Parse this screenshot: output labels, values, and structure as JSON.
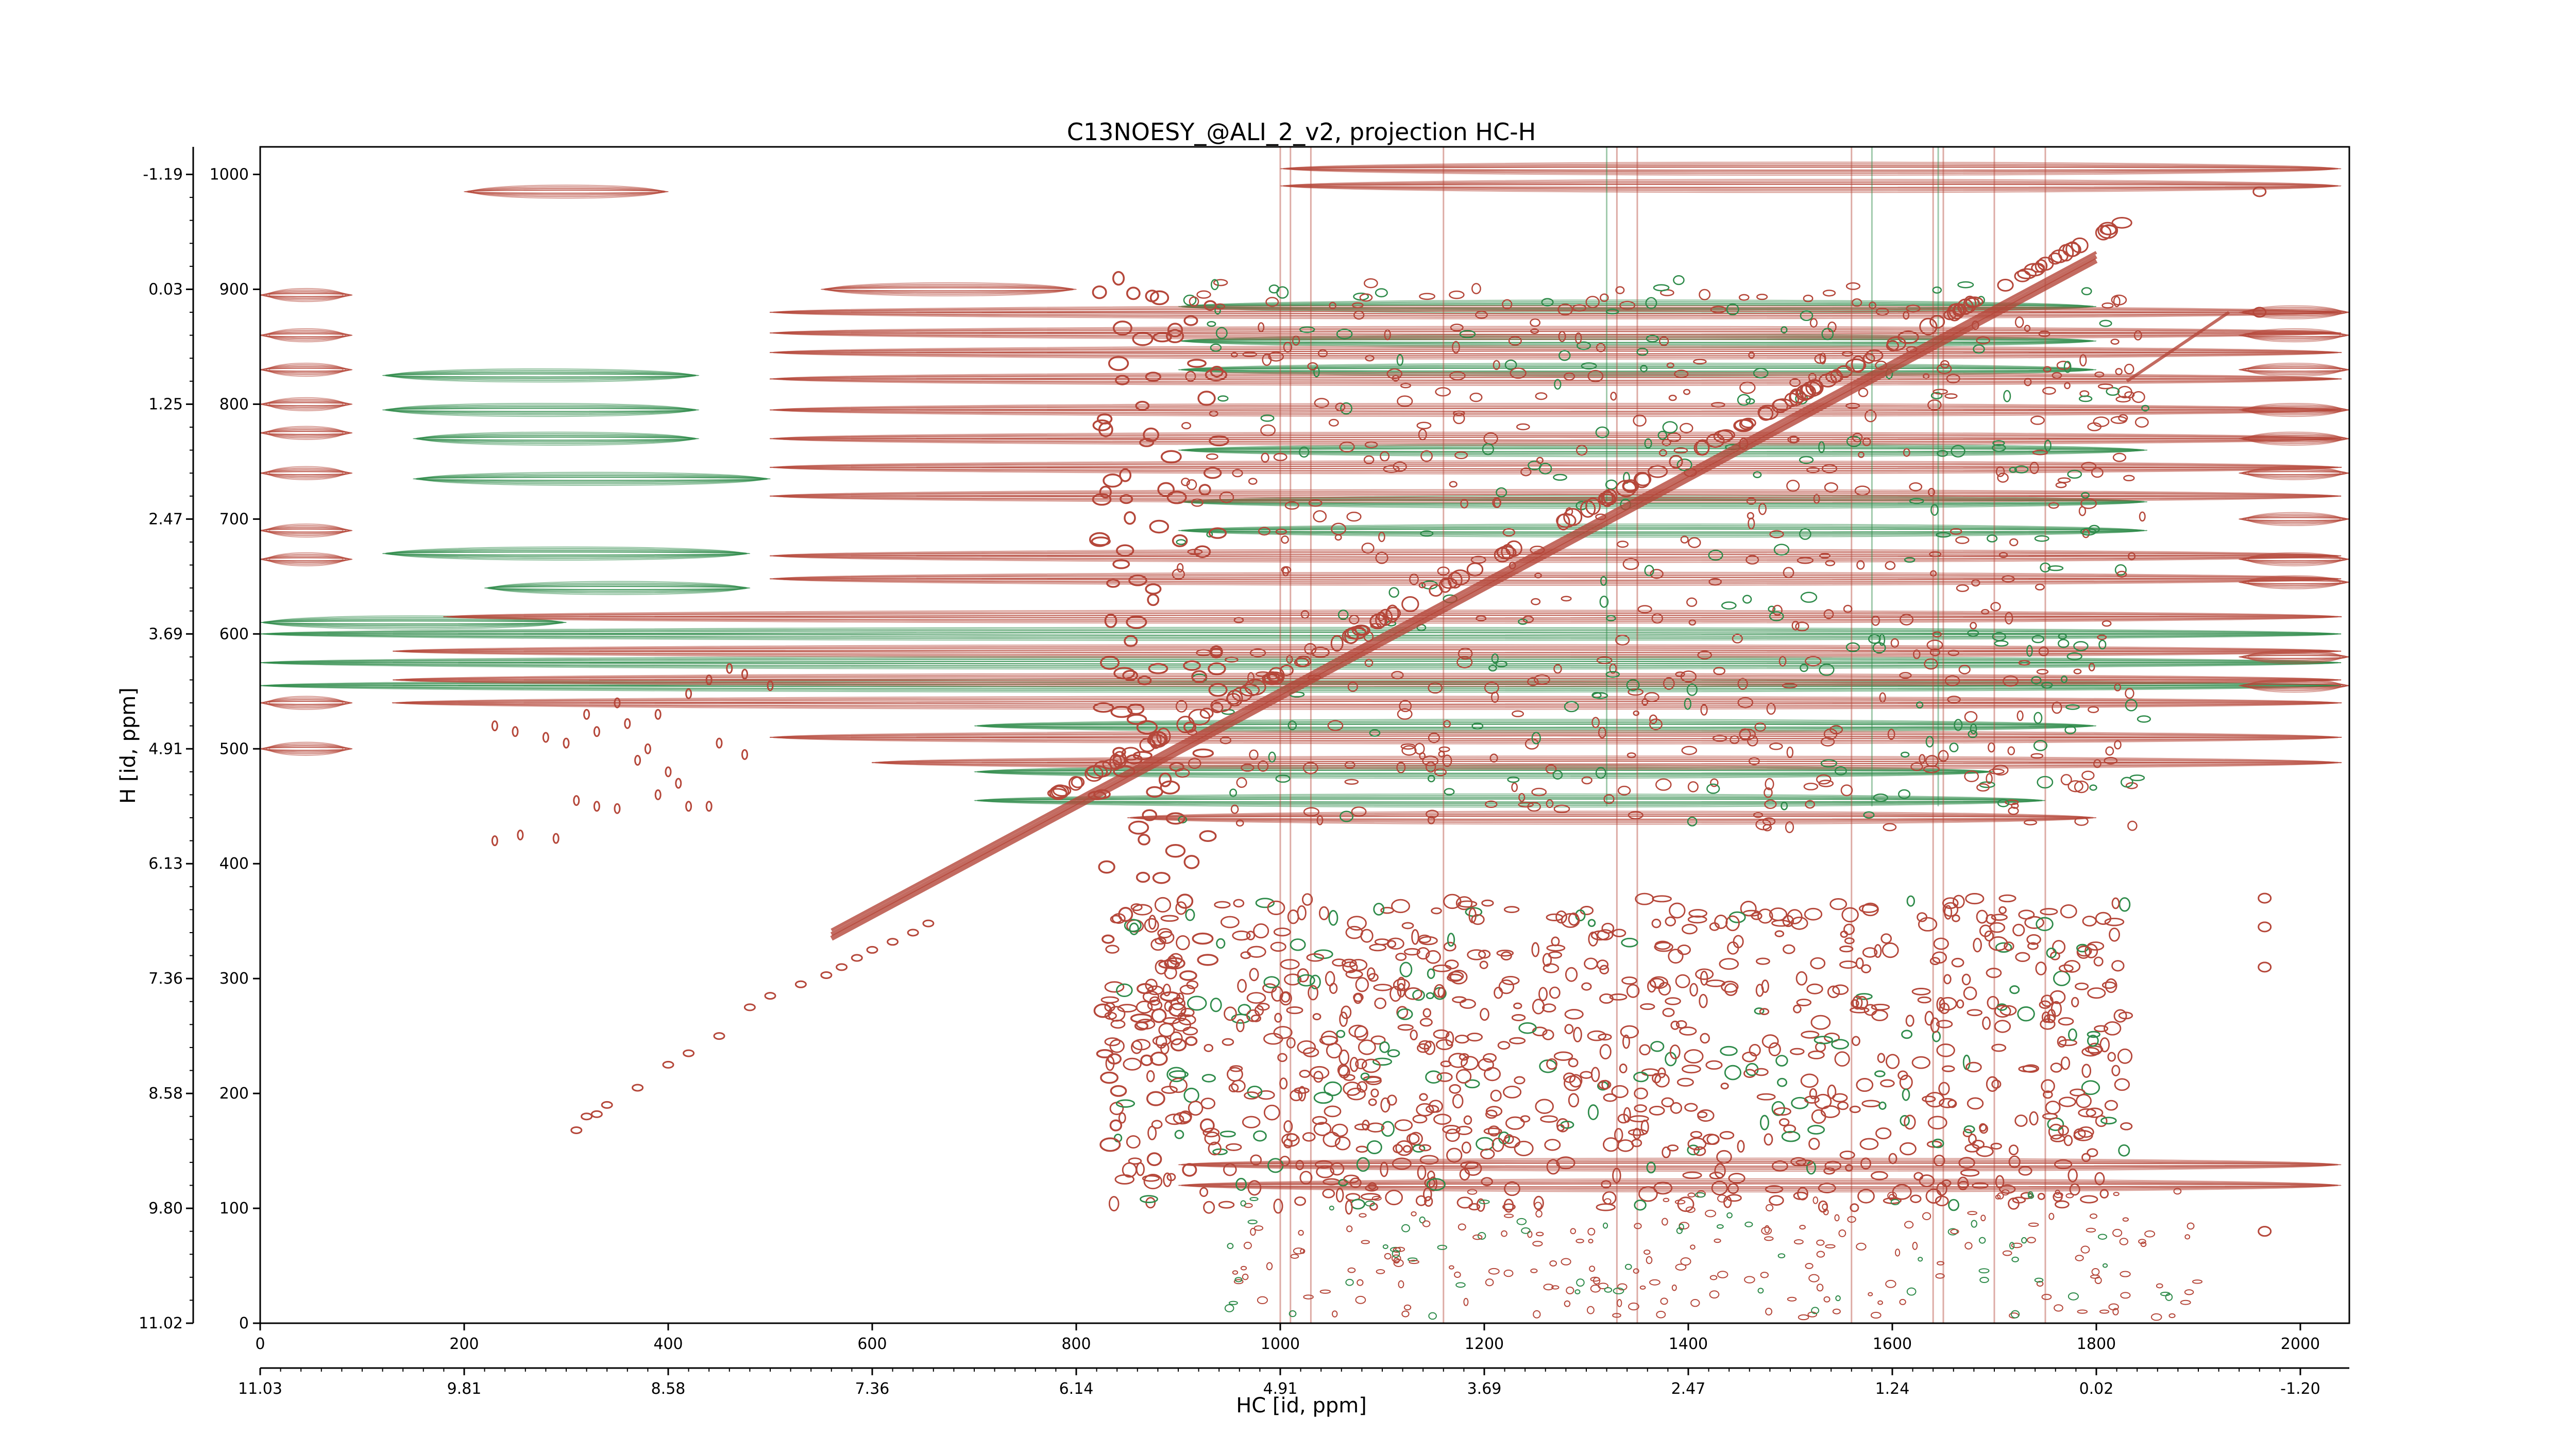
{
  "chart_data": {
    "type": "heatmap",
    "subtype": "2D NMR contour plot (positive/negative levels)",
    "title": "C13NOESY_@ALI_2_v2, projection HC-H",
    "xlabel": "HC [id, ppm]",
    "ylabel": "H [id, ppm]",
    "grid": false,
    "legend": "none",
    "xlim": [
      0,
      2048
    ],
    "ylim": [
      0,
      1024
    ],
    "x_ticks_id": [
      0,
      200,
      400,
      600,
      800,
      1000,
      1200,
      1400,
      1600,
      1800,
      2000
    ],
    "x_ticks_ppm": [
      "11.03",
      "9.81",
      "8.58",
      "7.36",
      "6.14",
      "4.91",
      "3.69",
      "2.47",
      "1.24",
      "0.02",
      "-1.20"
    ],
    "y_ticks_id": [
      0,
      100,
      200,
      300,
      400,
      500,
      600,
      700,
      800,
      900,
      1000
    ],
    "y_ticks_ppm": [
      "11.02",
      "9.80",
      "8.58",
      "7.36",
      "6.13",
      "4.91",
      "3.69",
      "2.47",
      "1.25",
      "0.03",
      "-1.19"
    ],
    "colors": {
      "positive_contours": "#b5473a",
      "negative_contours": "#2e8b4a"
    },
    "diagonal": {
      "from": [
        560,
        335
      ],
      "to": [
        1800,
        925
      ]
    },
    "positive_bands": [
      {
        "y": 985,
        "x0": 200,
        "x1": 400
      },
      {
        "y": 900,
        "x0": 550,
        "x1": 800
      },
      {
        "y": 880,
        "x0": 500,
        "x1": 2040
      },
      {
        "y": 862,
        "x0": 500,
        "x1": 2040
      },
      {
        "y": 845,
        "x0": 500,
        "x1": 2040
      },
      {
        "y": 822,
        "x0": 500,
        "x1": 2040
      },
      {
        "y": 795,
        "x0": 500,
        "x1": 2040
      },
      {
        "y": 770,
        "x0": 500,
        "x1": 2040
      },
      {
        "y": 745,
        "x0": 500,
        "x1": 2040
      },
      {
        "y": 720,
        "x0": 500,
        "x1": 2040
      },
      {
        "y": 668,
        "x0": 500,
        "x1": 2040
      },
      {
        "y": 648,
        "x0": 500,
        "x1": 2040
      },
      {
        "y": 615,
        "x0": 180,
        "x1": 2040
      },
      {
        "y": 585,
        "x0": 130,
        "x1": 2040
      },
      {
        "y": 560,
        "x0": 130,
        "x1": 2040
      },
      {
        "y": 540,
        "x0": 130,
        "x1": 2040
      },
      {
        "y": 510,
        "x0": 500,
        "x1": 2040
      },
      {
        "y": 488,
        "x0": 600,
        "x1": 2040
      },
      {
        "y": 440,
        "x0": 850,
        "x1": 1800
      },
      {
        "y": 138,
        "x0": 900,
        "x1": 2040
      },
      {
        "y": 120,
        "x0": 900,
        "x1": 2040
      },
      {
        "y": 1005,
        "x0": 1000,
        "x1": 2040
      },
      {
        "y": 990,
        "x0": 1000,
        "x1": 2040
      }
    ],
    "negative_bands": [
      {
        "y": 825,
        "x0": 120,
        "x1": 430
      },
      {
        "y": 795,
        "x0": 120,
        "x1": 430
      },
      {
        "y": 770,
        "x0": 150,
        "x1": 430
      },
      {
        "y": 735,
        "x0": 150,
        "x1": 500
      },
      {
        "y": 670,
        "x0": 120,
        "x1": 480
      },
      {
        "y": 640,
        "x0": 220,
        "x1": 480
      },
      {
        "y": 610,
        "x0": 0,
        "x1": 300
      },
      {
        "y": 600,
        "x0": 0,
        "x1": 2040
      },
      {
        "y": 575,
        "x0": 0,
        "x1": 2040
      },
      {
        "y": 555,
        "x0": 0,
        "x1": 2040
      },
      {
        "y": 520,
        "x0": 700,
        "x1": 1800
      },
      {
        "y": 480,
        "x0": 700,
        "x1": 1700
      },
      {
        "y": 455,
        "x0": 700,
        "x1": 1750
      },
      {
        "y": 885,
        "x0": 900,
        "x1": 1800
      },
      {
        "y": 855,
        "x0": 900,
        "x1": 1800
      },
      {
        "y": 830,
        "x0": 900,
        "x1": 1800
      },
      {
        "y": 760,
        "x0": 900,
        "x1": 1850
      },
      {
        "y": 715,
        "x0": 900,
        "x1": 1850
      },
      {
        "y": 690,
        "x0": 900,
        "x1": 1850
      }
    ],
    "left_strip_bands": [
      {
        "y": 895
      },
      {
        "y": 860
      },
      {
        "y": 830
      },
      {
        "y": 800
      },
      {
        "y": 775
      },
      {
        "y": 740
      },
      {
        "y": 690
      },
      {
        "y": 665
      },
      {
        "y": 540
      },
      {
        "y": 500
      }
    ],
    "right_strip_bands": [
      {
        "y": 880
      },
      {
        "y": 860
      },
      {
        "y": 830
      },
      {
        "y": 795
      },
      {
        "y": 770
      },
      {
        "y": 740
      },
      {
        "y": 700
      },
      {
        "y": 665
      },
      {
        "y": 645
      },
      {
        "y": 580
      },
      {
        "y": 555
      }
    ],
    "aromatic_peaks": [
      {
        "x": 655,
        "y": 348
      },
      {
        "x": 640,
        "y": 340
      },
      {
        "x": 620,
        "y": 332
      },
      {
        "x": 600,
        "y": 325
      },
      {
        "x": 585,
        "y": 318
      },
      {
        "x": 570,
        "y": 310
      },
      {
        "x": 555,
        "y": 303
      },
      {
        "x": 530,
        "y": 295
      },
      {
        "x": 500,
        "y": 285
      },
      {
        "x": 480,
        "y": 275
      },
      {
        "x": 450,
        "y": 250
      },
      {
        "x": 420,
        "y": 235
      },
      {
        "x": 400,
        "y": 225
      },
      {
        "x": 370,
        "y": 205
      },
      {
        "x": 340,
        "y": 190
      },
      {
        "x": 320,
        "y": 180
      },
      {
        "x": 310,
        "y": 168
      },
      {
        "x": 330,
        "y": 182
      }
    ],
    "upper_left_peaks": [
      {
        "x": 230,
        "y": 520
      },
      {
        "x": 250,
        "y": 515
      },
      {
        "x": 280,
        "y": 510
      },
      {
        "x": 300,
        "y": 505
      },
      {
        "x": 330,
        "y": 515
      },
      {
        "x": 360,
        "y": 522
      },
      {
        "x": 390,
        "y": 530
      },
      {
        "x": 420,
        "y": 548
      },
      {
        "x": 440,
        "y": 560
      },
      {
        "x": 460,
        "y": 570
      },
      {
        "x": 475,
        "y": 565
      },
      {
        "x": 500,
        "y": 555
      },
      {
        "x": 380,
        "y": 500
      },
      {
        "x": 400,
        "y": 480
      },
      {
        "x": 410,
        "y": 470
      },
      {
        "x": 390,
        "y": 460
      },
      {
        "x": 420,
        "y": 450
      },
      {
        "x": 440,
        "y": 450
      },
      {
        "x": 310,
        "y": 455
      },
      {
        "x": 330,
        "y": 450
      },
      {
        "x": 350,
        "y": 448
      },
      {
        "x": 230,
        "y": 420
      },
      {
        "x": 255,
        "y": 425
      },
      {
        "x": 290,
        "y": 422
      },
      {
        "x": 370,
        "y": 490
      },
      {
        "x": 450,
        "y": 505
      },
      {
        "x": 475,
        "y": 495
      },
      {
        "x": 350,
        "y": 540
      },
      {
        "x": 320,
        "y": 530
      }
    ]
  }
}
